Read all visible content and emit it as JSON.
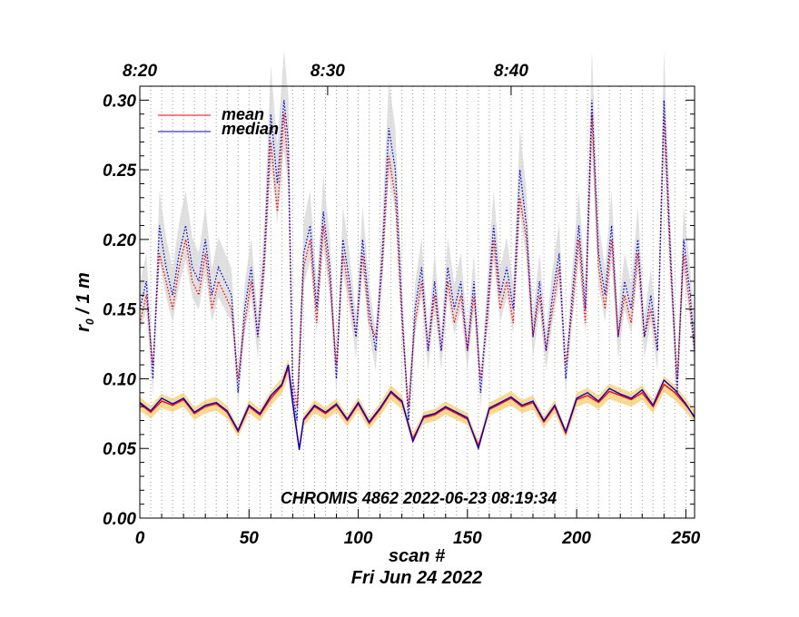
{
  "chart_data": {
    "type": "line",
    "xlabel": "scan #",
    "date_label": "Fri Jun 24 2022",
    "ylabel": "r₀ / 1 m",
    "annotation": "CHROMIS 4862 2022-06-23 08:19:34",
    "xlim": [
      0,
      254
    ],
    "ylim": [
      0,
      0.31
    ],
    "x_ticks": [
      0,
      50,
      100,
      150,
      200,
      250
    ],
    "x_tick_labels": [
      "0",
      "50",
      "100",
      "150",
      "200",
      "250"
    ],
    "y_ticks": [
      0,
      0.05,
      0.1,
      0.15,
      0.2,
      0.25,
      0.3
    ],
    "y_tick_labels": [
      "0.00",
      "0.05",
      "0.10",
      "0.15",
      "0.20",
      "0.25",
      "0.30"
    ],
    "top_axis": {
      "tick_labels": [
        "8:20",
        "8:30",
        "8:40"
      ],
      "tick_positions_scan": [
        0,
        86,
        170
      ]
    },
    "legend": {
      "position": "top-left",
      "entries": [
        {
          "label": "mean",
          "color": "#ff0000"
        },
        {
          "label": "median",
          "color": "#0000cc"
        }
      ]
    },
    "vertical_grid": "dotted grey line at every scan boundary (every 5 scans)",
    "series": [
      {
        "name": "mean",
        "group": "lower (solid)",
        "color": "#ff0000",
        "x": [
          0,
          5,
          10,
          15,
          20,
          25,
          30,
          35,
          40,
          45,
          50,
          55,
          60,
          65,
          68,
          70,
          73,
          75,
          80,
          85,
          90,
          95,
          100,
          105,
          110,
          115,
          120,
          125,
          130,
          135,
          140,
          145,
          150,
          155,
          160,
          165,
          170,
          175,
          180,
          185,
          190,
          195,
          200,
          205,
          210,
          215,
          220,
          225,
          230,
          235,
          240,
          245,
          250,
          254
        ],
        "values": [
          0.082,
          0.076,
          0.084,
          0.081,
          0.085,
          0.075,
          0.08,
          0.082,
          0.076,
          0.062,
          0.08,
          0.074,
          0.086,
          0.095,
          0.108,
          0.082,
          0.05,
          0.07,
          0.08,
          0.075,
          0.081,
          0.07,
          0.082,
          0.068,
          0.078,
          0.09,
          0.083,
          0.057,
          0.072,
          0.074,
          0.079,
          0.075,
          0.071,
          0.052,
          0.078,
          0.082,
          0.086,
          0.08,
          0.083,
          0.069,
          0.08,
          0.061,
          0.085,
          0.088,
          0.083,
          0.091,
          0.088,
          0.085,
          0.09,
          0.08,
          0.096,
          0.09,
          0.081,
          0.073
        ]
      },
      {
        "name": "median",
        "group": "lower (solid)",
        "color": "#0000cc",
        "x": [
          0,
          5,
          10,
          15,
          20,
          25,
          30,
          35,
          40,
          45,
          50,
          55,
          60,
          65,
          68,
          70,
          73,
          75,
          80,
          85,
          90,
          95,
          100,
          105,
          110,
          115,
          120,
          125,
          130,
          135,
          140,
          145,
          150,
          155,
          160,
          165,
          170,
          175,
          180,
          185,
          190,
          195,
          200,
          205,
          210,
          215,
          220,
          225,
          230,
          235,
          240,
          245,
          250,
          254
        ],
        "values": [
          0.083,
          0.077,
          0.086,
          0.082,
          0.086,
          0.076,
          0.081,
          0.083,
          0.077,
          0.063,
          0.081,
          0.075,
          0.088,
          0.096,
          0.11,
          0.083,
          0.049,
          0.071,
          0.081,
          0.076,
          0.082,
          0.071,
          0.083,
          0.069,
          0.079,
          0.091,
          0.084,
          0.055,
          0.073,
          0.075,
          0.08,
          0.076,
          0.072,
          0.05,
          0.079,
          0.083,
          0.087,
          0.081,
          0.084,
          0.07,
          0.081,
          0.062,
          0.086,
          0.09,
          0.084,
          0.093,
          0.089,
          0.086,
          0.092,
          0.081,
          0.099,
          0.092,
          0.082,
          0.072
        ]
      },
      {
        "name": "mean",
        "group": "upper (dotted)",
        "color": "#ff0000",
        "x": [
          0,
          3,
          6,
          9,
          12,
          15,
          18,
          21,
          24,
          27,
          30,
          33,
          36,
          39,
          42,
          45,
          48,
          51,
          54,
          57,
          60,
          63,
          66,
          68,
          70,
          72,
          75,
          78,
          81,
          84,
          87,
          90,
          93,
          96,
          99,
          102,
          105,
          108,
          111,
          114,
          117,
          120,
          123,
          126,
          129,
          132,
          135,
          138,
          141,
          144,
          147,
          150,
          153,
          156,
          159,
          162,
          165,
          168,
          171,
          174,
          177,
          180,
          183,
          186,
          189,
          192,
          195,
          198,
          201,
          204,
          207,
          210,
          213,
          216,
          219,
          222,
          225,
          228,
          231,
          234,
          237,
          240,
          243,
          246,
          249,
          252,
          254
        ],
        "values": [
          0.14,
          0.16,
          0.11,
          0.19,
          0.17,
          0.15,
          0.18,
          0.2,
          0.17,
          0.16,
          0.19,
          0.15,
          0.17,
          0.16,
          0.15,
          0.1,
          0.14,
          0.17,
          0.13,
          0.18,
          0.27,
          0.22,
          0.29,
          0.25,
          0.1,
          0.08,
          0.18,
          0.2,
          0.14,
          0.21,
          0.17,
          0.11,
          0.19,
          0.16,
          0.13,
          0.19,
          0.14,
          0.13,
          0.18,
          0.26,
          0.23,
          0.14,
          0.08,
          0.14,
          0.17,
          0.12,
          0.16,
          0.12,
          0.17,
          0.14,
          0.16,
          0.12,
          0.16,
          0.1,
          0.14,
          0.2,
          0.15,
          0.17,
          0.14,
          0.23,
          0.2,
          0.13,
          0.16,
          0.12,
          0.15,
          0.18,
          0.11,
          0.15,
          0.2,
          0.14,
          0.29,
          0.18,
          0.15,
          0.2,
          0.13,
          0.16,
          0.14,
          0.19,
          0.13,
          0.15,
          0.12,
          0.29,
          0.18,
          0.1,
          0.19,
          0.15,
          0.12
        ]
      },
      {
        "name": "median",
        "group": "upper (dotted)",
        "color": "#0000cc",
        "x": [
          0,
          3,
          6,
          9,
          12,
          15,
          18,
          21,
          24,
          27,
          30,
          33,
          36,
          39,
          42,
          45,
          48,
          51,
          54,
          57,
          60,
          63,
          66,
          68,
          70,
          72,
          75,
          78,
          81,
          84,
          87,
          90,
          93,
          96,
          99,
          102,
          105,
          108,
          111,
          114,
          117,
          120,
          123,
          126,
          129,
          132,
          135,
          138,
          141,
          144,
          147,
          150,
          153,
          156,
          159,
          162,
          165,
          168,
          171,
          174,
          177,
          180,
          183,
          186,
          189,
          192,
          195,
          198,
          201,
          204,
          207,
          210,
          213,
          216,
          219,
          222,
          225,
          228,
          231,
          234,
          237,
          240,
          243,
          246,
          249,
          252,
          254
        ],
        "values": [
          0.15,
          0.17,
          0.1,
          0.21,
          0.18,
          0.16,
          0.19,
          0.21,
          0.18,
          0.17,
          0.2,
          0.16,
          0.18,
          0.17,
          0.16,
          0.09,
          0.15,
          0.18,
          0.13,
          0.19,
          0.29,
          0.24,
          0.3,
          0.27,
          0.09,
          0.07,
          0.19,
          0.21,
          0.15,
          0.22,
          0.18,
          0.1,
          0.2,
          0.17,
          0.13,
          0.2,
          0.15,
          0.12,
          0.19,
          0.28,
          0.25,
          0.15,
          0.07,
          0.15,
          0.18,
          0.12,
          0.17,
          0.12,
          0.18,
          0.15,
          0.17,
          0.12,
          0.17,
          0.09,
          0.15,
          0.21,
          0.16,
          0.18,
          0.15,
          0.25,
          0.21,
          0.13,
          0.17,
          0.12,
          0.16,
          0.19,
          0.1,
          0.16,
          0.21,
          0.15,
          0.3,
          0.19,
          0.16,
          0.21,
          0.13,
          0.17,
          0.15,
          0.2,
          0.13,
          0.16,
          0.12,
          0.3,
          0.19,
          0.09,
          0.2,
          0.16,
          0.12
        ]
      }
    ]
  }
}
